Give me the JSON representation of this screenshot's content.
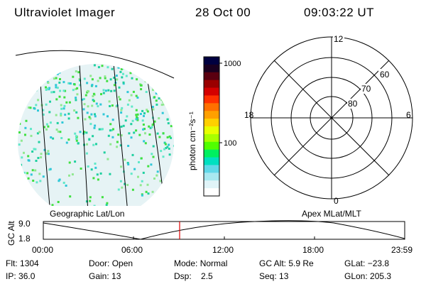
{
  "header": {
    "instrument": "Ultraviolet Imager",
    "date": "28 Oct 00",
    "time": "09:03:22 UT"
  },
  "colorbar": {
    "unit_label": "photon cm⁻²s⁻¹",
    "ticks": [
      "1000",
      "100"
    ],
    "colors": [
      "#000040",
      "#1a0020",
      "#5a0010",
      "#9a0000",
      "#d40000",
      "#ff3000",
      "#ff7000",
      "#ffa000",
      "#ffd000",
      "#e8ff00",
      "#a8ff00",
      "#50ff00",
      "#00f060",
      "#00e0c0",
      "#60d8e8",
      "#a8e8f0",
      "#e0f4f8",
      "#ffffff"
    ]
  },
  "polar_plot": {
    "lat_labels": [
      "80",
      "70",
      "60"
    ],
    "mlt_labels": [
      "12",
      "18",
      "6",
      "0"
    ]
  },
  "plot_labels": {
    "left": "Geographic Lat/Lon",
    "right": "Apex MLat/MLT"
  },
  "altitude_chart": {
    "ylabel": "GC Alt",
    "yticks": [
      "9.0",
      "1.8"
    ],
    "xticks": [
      "00:00",
      "06:00",
      "12:00",
      "18:00",
      "23:59"
    ],
    "marker_time": "09:03"
  },
  "info": {
    "flt_label": "Flt:",
    "flt_value": "1304",
    "door_label": "Door:",
    "door_value": "Open",
    "mode_label": "Mode:",
    "mode_value": "Normal",
    "gcalt_label": "GC Alt:",
    "gcalt_value": "5.9 Re",
    "glat_label": "GLat:",
    "glat_value": "−23.8",
    "ip_label": "IP:",
    "ip_value": "36.0",
    "gain_label": "Gain:",
    "gain_value": "13",
    "dsp_label": "Dsp:",
    "dsp_value": "2.5",
    "seq_label": "Seq:",
    "seq_value": "13",
    "glon_label": "GLon:",
    "glon_value": "205.3"
  }
}
